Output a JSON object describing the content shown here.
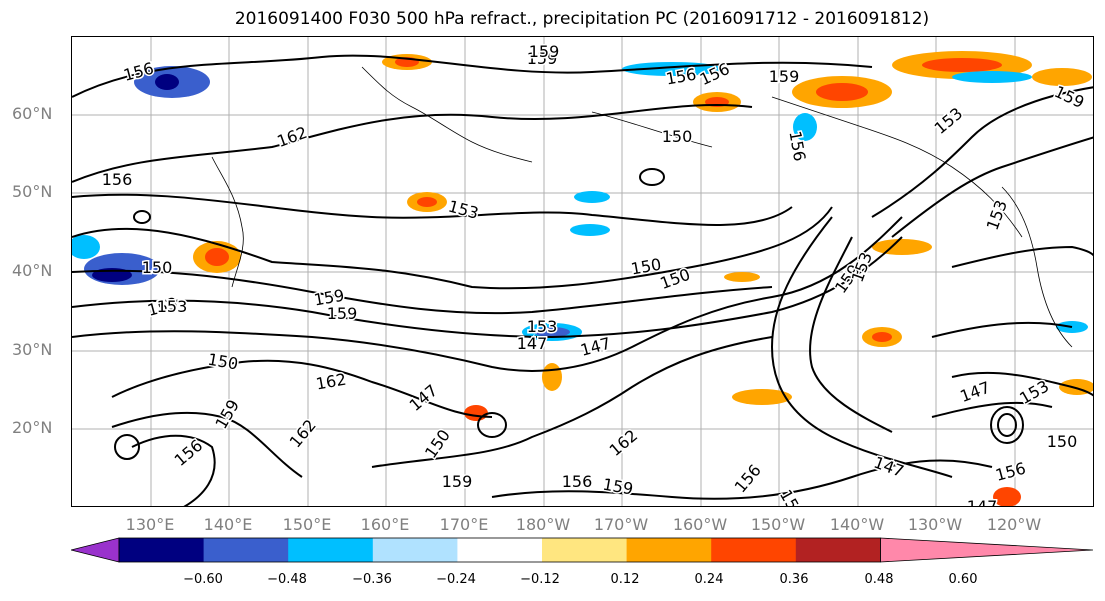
{
  "title": "2016091400 F030 500 hPa refract., precipitation PC (2016091712 - 2016091812)",
  "lat_labels": [
    "60°N",
    "50°N",
    "40°N",
    "30°N",
    "20°N"
  ],
  "lon_labels": [
    "130°E",
    "140°E",
    "150°E",
    "160°E",
    "170°E",
    "180°W",
    "170°W",
    "160°W",
    "150°W",
    "140°W",
    "130°W",
    "120°W"
  ],
  "colorbar": {
    "ticks": [
      "−0.60",
      "−0.48",
      "−0.36",
      "−0.24",
      "−0.12",
      "0.12",
      "0.24",
      "0.36",
      "0.48",
      "0.60"
    ],
    "colors": [
      "#9932cc",
      "#000080",
      "#3a5fcd",
      "#00bfff",
      "#b0e2ff",
      "#ffffff",
      "#ffe680",
      "#ffa500",
      "#ff4500",
      "#b22222",
      "#ff88aa"
    ]
  },
  "contour_labels": [
    "156",
    "159",
    "162",
    "156",
    "153",
    "150",
    "153",
    "162",
    "150",
    "159",
    "156",
    "159",
    "156",
    "159",
    "156",
    "150",
    "153",
    "159",
    "153",
    "150",
    "147",
    "147",
    "159",
    "147",
    "150",
    "147",
    "150",
    "159",
    "162",
    "156",
    "159",
    "153",
    "156",
    "159",
    "153",
    "147",
    "150",
    "153",
    "156",
    "159",
    "162",
    "153",
    "156",
    "152",
    "147"
  ],
  "map_style": {
    "grid_color": "#b0b0b0",
    "contour_color": "#000000",
    "label_color": "#808080"
  }
}
